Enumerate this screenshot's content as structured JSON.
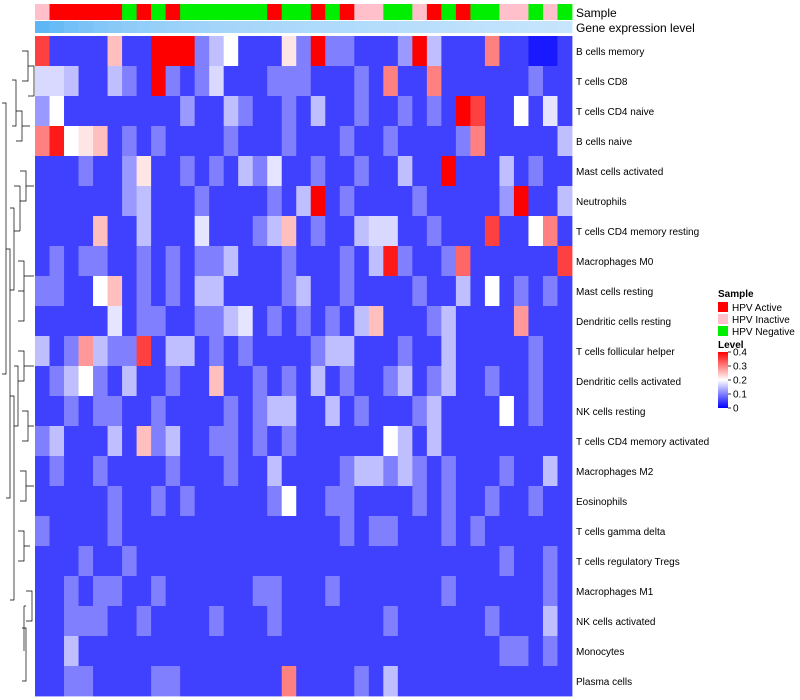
{
  "chart_data": {
    "type": "heatmap",
    "title": "",
    "annotation_labels": [
      "Sample",
      "Gene expression level"
    ],
    "rows": [
      "B cells memory",
      "T cells CD8",
      "T cells CD4 naive",
      "B cells naive",
      "Mast cells activated",
      "Neutrophils",
      "T cells CD4 memory resting",
      "Macrophages M0",
      "Mast cells resting",
      "Dendritic cells resting",
      "T cells follicular helper",
      "Dendritic cells activated",
      "NK cells resting",
      "T cells CD4 memory activated",
      "Macrophages M2",
      "Eosinophils",
      "T cells gamma delta",
      "T cells regulatory  Tregs",
      "Macrophages M1",
      "NK cells activated",
      "Monocytes",
      "Plasma cells"
    ],
    "sample_groups": [
      "HPV Inactive",
      "HPV Active",
      "HPV Active",
      "HPV Active",
      "HPV Active",
      "HPV Active",
      "HPV Negative",
      "HPV Active",
      "HPV Negative",
      "HPV Active",
      "HPV Negative",
      "HPV Negative",
      "HPV Negative",
      "HPV Negative",
      "HPV Negative",
      "HPV Negative",
      "HPV Active",
      "HPV Negative",
      "HPV Negative",
      "HPV Active",
      "HPV Negative",
      "HPV Active",
      "HPV Inactive",
      "HPV Inactive",
      "HPV Negative",
      "HPV Negative",
      "HPV Inactive",
      "HPV Active",
      "HPV Negative",
      "HPV Active",
      "HPV Negative",
      "HPV Negative",
      "HPV Inactive",
      "HPV Inactive",
      "HPV Negative",
      "HPV Inactive",
      "HPV Negative"
    ],
    "values": [
      [
        0.35,
        0.05,
        0.05,
        0.05,
        0.05,
        0.25,
        0.05,
        0.05,
        0.4,
        0.4,
        0.4,
        0.1,
        0.15,
        0.2,
        0.05,
        0.05,
        0.05,
        0.22,
        0.1,
        0.4,
        0.1,
        0.1,
        0.05,
        0.05,
        0.05,
        0.12,
        0.4,
        0.15,
        0.05,
        0.05,
        0.05,
        0.3,
        0.05,
        0.05,
        0.02,
        0.02,
        0.05
      ],
      [
        0.17,
        0.17,
        0.15,
        0.05,
        0.05,
        0.15,
        0.1,
        0.05,
        0.4,
        0.1,
        0.05,
        0.1,
        0.17,
        0.05,
        0.05,
        0.05,
        0.1,
        0.1,
        0.1,
        0.05,
        0.05,
        0.05,
        0.1,
        0.05,
        0.3,
        0.05,
        0.05,
        0.3,
        0.05,
        0.05,
        0.05,
        0.05,
        0.05,
        0.05,
        0.1,
        0.05,
        0.05
      ],
      [
        0.12,
        0.2,
        0.05,
        0.05,
        0.05,
        0.05,
        0.05,
        0.05,
        0.05,
        0.05,
        0.12,
        0.05,
        0.05,
        0.15,
        0.1,
        0.05,
        0.05,
        0.1,
        0.05,
        0.15,
        0.05,
        0.05,
        0.1,
        0.05,
        0.05,
        0.1,
        0.05,
        0.1,
        0.05,
        0.4,
        0.35,
        0.05,
        0.05,
        0.2,
        0.05,
        0.18,
        0.05
      ],
      [
        0.3,
        0.38,
        0.2,
        0.22,
        0.25,
        0.05,
        0.1,
        0.05,
        0.1,
        0.05,
        0.05,
        0.05,
        0.05,
        0.1,
        0.05,
        0.05,
        0.05,
        0.1,
        0.05,
        0.05,
        0.05,
        0.1,
        0.05,
        0.05,
        0.1,
        0.05,
        0.05,
        0.05,
        0.05,
        0.1,
        0.3,
        0.05,
        0.05,
        0.05,
        0.05,
        0.05,
        0.15
      ],
      [
        0.05,
        0.05,
        0.05,
        0.1,
        0.05,
        0.05,
        0.12,
        0.22,
        0.05,
        0.05,
        0.1,
        0.05,
        0.1,
        0.05,
        0.15,
        0.1,
        0.18,
        0.05,
        0.05,
        0.1,
        0.05,
        0.05,
        0.1,
        0.05,
        0.05,
        0.15,
        0.05,
        0.05,
        0.4,
        0.05,
        0.05,
        0.05,
        0.15,
        0.05,
        0.1,
        0.05,
        0.05
      ],
      [
        0.05,
        0.05,
        0.05,
        0.05,
        0.05,
        0.05,
        0.12,
        0.15,
        0.05,
        0.05,
        0.05,
        0.1,
        0.05,
        0.05,
        0.05,
        0.05,
        0.1,
        0.05,
        0.15,
        0.4,
        0.05,
        0.1,
        0.05,
        0.05,
        0.05,
        0.05,
        0.1,
        0.05,
        0.05,
        0.05,
        0.05,
        0.05,
        0.12,
        0.4,
        0.05,
        0.05,
        0.15
      ],
      [
        0.05,
        0.05,
        0.05,
        0.05,
        0.25,
        0.05,
        0.05,
        0.15,
        0.05,
        0.05,
        0.05,
        0.18,
        0.05,
        0.05,
        0.05,
        0.1,
        0.15,
        0.25,
        0.05,
        0.1,
        0.05,
        0.05,
        0.15,
        0.17,
        0.17,
        0.05,
        0.05,
        0.1,
        0.05,
        0.05,
        0.05,
        0.35,
        0.05,
        0.05,
        0.2,
        0.3,
        0.05
      ],
      [
        0.05,
        0.1,
        0.05,
        0.1,
        0.1,
        0.05,
        0.05,
        0.1,
        0.05,
        0.1,
        0.05,
        0.1,
        0.1,
        0.15,
        0.05,
        0.05,
        0.05,
        0.1,
        0.05,
        0.05,
        0.05,
        0.1,
        0.05,
        0.15,
        0.38,
        0.1,
        0.05,
        0.05,
        0.1,
        0.32,
        0.05,
        0.05,
        0.05,
        0.05,
        0.05,
        0.05,
        0.35
      ],
      [
        0.1,
        0.1,
        0.05,
        0.05,
        0.2,
        0.25,
        0.05,
        0.1,
        0.05,
        0.1,
        0.05,
        0.15,
        0.15,
        0.05,
        0.05,
        0.05,
        0.05,
        0.1,
        0.15,
        0.05,
        0.05,
        0.1,
        0.05,
        0.05,
        0.05,
        0.05,
        0.1,
        0.05,
        0.05,
        0.15,
        0.05,
        0.2,
        0.05,
        0.1,
        0.05,
        0.1,
        0.05
      ],
      [
        0.05,
        0.05,
        0.05,
        0.05,
        0.05,
        0.18,
        0.05,
        0.1,
        0.1,
        0.05,
        0.05,
        0.1,
        0.1,
        0.15,
        0.18,
        0.05,
        0.1,
        0.05,
        0.1,
        0.05,
        0.1,
        0.05,
        0.15,
        0.25,
        0.05,
        0.05,
        0.05,
        0.1,
        0.15,
        0.05,
        0.05,
        0.05,
        0.05,
        0.28,
        0.05,
        0.05,
        0.05
      ],
      [
        0.15,
        0.05,
        0.1,
        0.28,
        0.15,
        0.1,
        0.1,
        0.35,
        0.05,
        0.15,
        0.15,
        0.05,
        0.1,
        0.05,
        0.1,
        0.05,
        0.05,
        0.05,
        0.05,
        0.1,
        0.15,
        0.15,
        0.05,
        0.05,
        0.05,
        0.1,
        0.05,
        0.05,
        0.15,
        0.05,
        0.05,
        0.05,
        0.05,
        0.05,
        0.1,
        0.05,
        0.05
      ],
      [
        0.05,
        0.1,
        0.15,
        0.2,
        0.1,
        0.05,
        0.15,
        0.05,
        0.05,
        0.1,
        0.05,
        0.05,
        0.25,
        0.05,
        0.05,
        0.1,
        0.05,
        0.1,
        0.05,
        0.15,
        0.05,
        0.1,
        0.05,
        0.05,
        0.1,
        0.15,
        0.05,
        0.1,
        0.15,
        0.05,
        0.05,
        0.1,
        0.05,
        0.05,
        0.1,
        0.05,
        0.05
      ],
      [
        0.05,
        0.05,
        0.1,
        0.05,
        0.1,
        0.1,
        0.05,
        0.05,
        0.1,
        0.05,
        0.05,
        0.05,
        0.05,
        0.1,
        0.05,
        0.1,
        0.15,
        0.15,
        0.05,
        0.05,
        0.15,
        0.05,
        0.1,
        0.05,
        0.05,
        0.05,
        0.1,
        0.15,
        0.05,
        0.05,
        0.05,
        0.05,
        0.2,
        0.05,
        0.1,
        0.05,
        0.05
      ],
      [
        0.1,
        0.15,
        0.05,
        0.05,
        0.05,
        0.15,
        0.05,
        0.25,
        0.1,
        0.15,
        0.05,
        0.05,
        0.1,
        0.1,
        0.05,
        0.1,
        0.05,
        0.1,
        0.05,
        0.05,
        0.05,
        0.05,
        0.05,
        0.05,
        0.2,
        0.15,
        0.05,
        0.15,
        0.05,
        0.05,
        0.05,
        0.05,
        0.05,
        0.05,
        0.05,
        0.05,
        0.05
      ],
      [
        0.05,
        0.1,
        0.05,
        0.05,
        0.1,
        0.05,
        0.05,
        0.05,
        0.05,
        0.1,
        0.05,
        0.05,
        0.05,
        0.1,
        0.05,
        0.05,
        0.15,
        0.05,
        0.05,
        0.05,
        0.05,
        0.1,
        0.15,
        0.15,
        0.1,
        0.15,
        0.1,
        0.05,
        0.1,
        0.05,
        0.05,
        0.05,
        0.1,
        0.05,
        0.05,
        0.15,
        0.05
      ],
      [
        0.05,
        0.05,
        0.05,
        0.05,
        0.05,
        0.1,
        0.05,
        0.05,
        0.1,
        0.05,
        0.1,
        0.05,
        0.05,
        0.05,
        0.05,
        0.05,
        0.1,
        0.2,
        0.05,
        0.05,
        0.1,
        0.1,
        0.05,
        0.05,
        0.05,
        0.05,
        0.1,
        0.05,
        0.1,
        0.05,
        0.05,
        0.1,
        0.05,
        0.05,
        0.1,
        0.05,
        0.05
      ],
      [
        0.1,
        0.05,
        0.05,
        0.05,
        0.05,
        0.1,
        0.05,
        0.05,
        0.05,
        0.05,
        0.05,
        0.05,
        0.05,
        0.05,
        0.05,
        0.05,
        0.05,
        0.05,
        0.05,
        0.05,
        0.05,
        0.1,
        0.05,
        0.1,
        0.1,
        0.05,
        0.05,
        0.05,
        0.1,
        0.05,
        0.1,
        0.05,
        0.05,
        0.05,
        0.05,
        0.05,
        0.05
      ],
      [
        0.05,
        0.05,
        0.05,
        0.1,
        0.05,
        0.05,
        0.1,
        0.05,
        0.05,
        0.05,
        0.05,
        0.05,
        0.05,
        0.05,
        0.05,
        0.05,
        0.05,
        0.05,
        0.05,
        0.05,
        0.05,
        0.05,
        0.05,
        0.05,
        0.05,
        0.05,
        0.05,
        0.05,
        0.05,
        0.05,
        0.05,
        0.05,
        0.1,
        0.05,
        0.05,
        0.1,
        0.05
      ],
      [
        0.05,
        0.05,
        0.1,
        0.05,
        0.1,
        0.1,
        0.05,
        0.05,
        0.1,
        0.05,
        0.05,
        0.05,
        0.05,
        0.05,
        0.05,
        0.1,
        0.1,
        0.05,
        0.05,
        0.05,
        0.1,
        0.05,
        0.05,
        0.05,
        0.05,
        0.05,
        0.05,
        0.05,
        0.1,
        0.05,
        0.05,
        0.05,
        0.05,
        0.05,
        0.05,
        0.1,
        0.05
      ],
      [
        0.05,
        0.05,
        0.1,
        0.1,
        0.1,
        0.05,
        0.05,
        0.1,
        0.05,
        0.05,
        0.05,
        0.05,
        0.1,
        0.05,
        0.05,
        0.05,
        0.1,
        0.05,
        0.05,
        0.05,
        0.05,
        0.05,
        0.05,
        0.05,
        0.1,
        0.05,
        0.05,
        0.05,
        0.05,
        0.05,
        0.05,
        0.1,
        0.05,
        0.05,
        0.05,
        0.15,
        0.05
      ],
      [
        0.05,
        0.05,
        0.15,
        0.05,
        0.05,
        0.05,
        0.05,
        0.05,
        0.05,
        0.05,
        0.05,
        0.05,
        0.05,
        0.05,
        0.05,
        0.05,
        0.05,
        0.05,
        0.05,
        0.05,
        0.05,
        0.05,
        0.05,
        0.05,
        0.05,
        0.05,
        0.05,
        0.05,
        0.05,
        0.05,
        0.05,
        0.05,
        0.1,
        0.1,
        0.05,
        0.1,
        0.05
      ],
      [
        0.05,
        0.05,
        0.1,
        0.1,
        0.05,
        0.05,
        0.05,
        0.05,
        0.1,
        0.1,
        0.05,
        0.05,
        0.05,
        0.05,
        0.05,
        0.05,
        0.05,
        0.3,
        0.05,
        0.05,
        0.05,
        0.05,
        0.1,
        0.05,
        0.15,
        0.05,
        0.05,
        0.05,
        0.05,
        0.05,
        0.05,
        0.05,
        0.05,
        0.05,
        0.05,
        0.05,
        0.05
      ]
    ],
    "gene_expression_level": [
      0.97,
      0.9,
      0.83,
      0.77,
      0.72,
      0.68,
      0.64,
      0.61,
      0.58,
      0.56,
      0.54,
      0.52,
      0.5,
      0.48,
      0.47,
      0.46,
      0.45,
      0.44,
      0.43,
      0.42,
      0.41,
      0.4,
      0.39,
      0.38,
      0.37,
      0.36,
      0.35,
      0.34,
      0.33,
      0.32,
      0.31,
      0.3,
      0.29,
      0.28,
      0.27,
      0.26,
      0.25
    ],
    "legend_sample": {
      "title": "Sample",
      "entries": [
        {
          "label": "HPV Active",
          "color": "#ff0000"
        },
        {
          "label": "HPV Inactive",
          "color": "#ffc0cb"
        },
        {
          "label": "HPV Negative",
          "color": "#00ee00"
        }
      ]
    },
    "legend_level": {
      "title": "Level",
      "ticks": [
        "0.4",
        "0.3",
        "0.2",
        "0.1",
        "0"
      ],
      "range": [
        0,
        0.4
      ]
    },
    "colors": {
      "low": "#0000ff",
      "mid": "#ffffff",
      "high": "#ff0000",
      "gene_level_low": "#ffffff",
      "gene_level_high": "#5ab4f5"
    }
  }
}
